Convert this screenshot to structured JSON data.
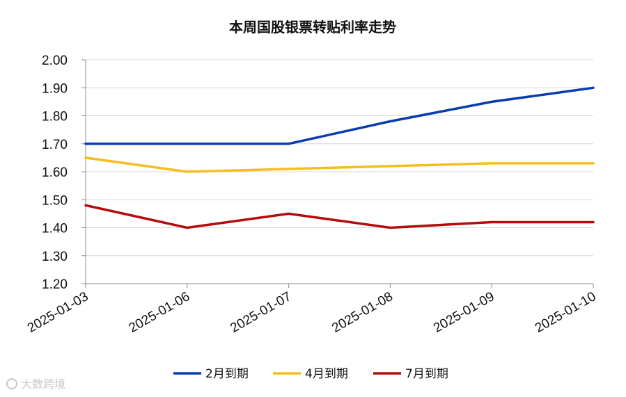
{
  "chart_data": {
    "type": "line",
    "title": "本周国股银票转贴利率走势",
    "x": [
      "2025-01-03",
      "2025-01-06",
      "2025-01-07",
      "2025-01-08",
      "2025-01-09",
      "2025-01-10"
    ],
    "ylim": [
      1.2,
      2.0
    ],
    "yticks": [
      "2.00",
      "1.90",
      "1.80",
      "1.70",
      "1.60",
      "1.50",
      "1.40",
      "1.30",
      "1.20"
    ],
    "grid": true,
    "legend": "bottom",
    "series": [
      {
        "name": "2月到期",
        "color": "#0a3bb0",
        "values": [
          1.7,
          1.7,
          1.7,
          1.78,
          1.85,
          1.9
        ]
      },
      {
        "name": "4月到期",
        "color": "#f5be1e",
        "values": [
          1.65,
          1.6,
          1.61,
          1.62,
          1.63,
          1.63
        ]
      },
      {
        "name": "7月到期",
        "color": "#b40c0c",
        "values": [
          1.48,
          1.4,
          1.45,
          1.4,
          1.42,
          1.42
        ]
      }
    ]
  },
  "watermark": "大数跨境"
}
